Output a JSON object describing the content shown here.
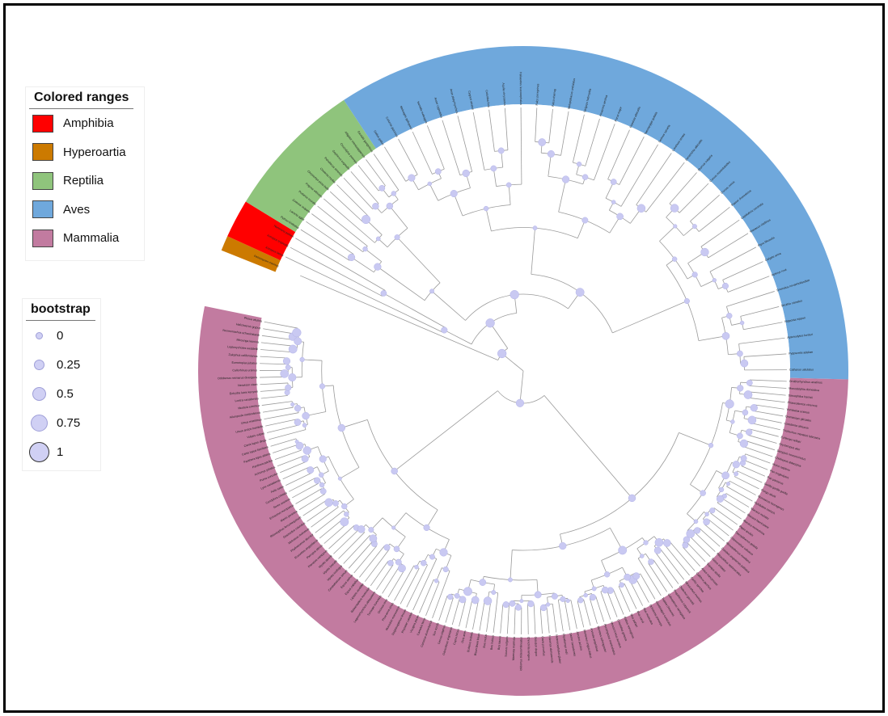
{
  "figure": {
    "type": "circular-phylogenetic-tree"
  },
  "legend_ranges": {
    "title": "Colored ranges",
    "items": [
      {
        "label": "Amphibia",
        "color": "#ff0000"
      },
      {
        "label": "Hyperoartia",
        "color": "#cc7a00"
      },
      {
        "label": "Reptilia",
        "color": "#8fc47c"
      },
      {
        "label": "Aves",
        "color": "#6fa8dc"
      },
      {
        "label": "Mammalia",
        "color": "#c27ba0"
      }
    ]
  },
  "legend_bootstrap": {
    "title": "bootstrap",
    "items": [
      {
        "label": "0",
        "value": 0
      },
      {
        "label": "0.25",
        "value": 0.25
      },
      {
        "label": "0.5",
        "value": 0.5
      },
      {
        "label": "0.75",
        "value": 0.75
      },
      {
        "label": "1",
        "value": 1
      }
    ]
  },
  "tree": {
    "node_color": "#c9c9f2",
    "branch_color": "#9a9a9a",
    "clades": [
      {
        "class": "Hyperoartia",
        "color": "#cc7a00",
        "leaves": [
          "Petromyzon marinus"
        ]
      },
      {
        "class": "Amphibia",
        "color": "#ff0000",
        "leaves": [
          "Xenopus laevis",
          "Xenopus tropicalis",
          "Nanorana parkeri"
        ]
      },
      {
        "class": "Reptilia",
        "color": "#8fc47c",
        "leaves": [
          "Python bivittatus",
          "Lacerta agilis",
          "Zootoca vivipara",
          "Podarcis muralis",
          "Pogona vitticeps",
          "Chrysemys picta bellii",
          "Chelonia mydas",
          "Pelodiscus sinensis",
          "Gopherus evgoodei",
          "Crocodylus porosus",
          "Alligator mississippiensis",
          "Gavialis gangeticus"
        ]
      },
      {
        "class": "Aves",
        "color": "#6fa8dc",
        "leaves": [
          "Gallus gallus",
          "Coturnix japonica",
          "Meleagris gallopavo",
          "Numida meleagris",
          "Anser cygnoides",
          "Anas platyrhynchos",
          "Cygnus atratus",
          "Columba livia",
          "Aquila chrysaetos",
          "Haliaeetus leucocephalus",
          "Falco peregrinus",
          "Falco cherrug",
          "Melopsittacus undulatus",
          "Strigops habroptila",
          "Amazona aestiva",
          "Parus major",
          "Ficedula albicollis",
          "Taeniopygia guttata",
          "Serinus canaria",
          "Lonchura striata",
          "Zonotrichia albicollis",
          "Sturnus vulgaris",
          "Corvus moneduloides",
          "Corvus cornix",
          "Passer domesticus",
          "Lepidothrix coronata",
          "Manacus vitellinus",
          "Pipra filicauda",
          "Calypte anna",
          "Apteryx rowi",
          "Dromaius novaehollandiae",
          "Struthio camelus",
          "Nipponia nippon",
          "Aptenodytes forsteri",
          "Pygoscelis adeliae",
          "Catharus ustulatus"
        ]
      },
      {
        "class": "Mammalia",
        "color": "#c27ba0",
        "leaves": [
          "Ornithorhynchus anatinus",
          "Monodelphis domestica",
          "Sarcophilus harrisii",
          "Phascolarctos cinereus",
          "Vombatus ursinus",
          "Dromiciops gliroides",
          "Loxodonta africana",
          "Trichechus manatus latirostris",
          "Echinops telfairi",
          "Orycteropus afer",
          "Dasypus novemcinctus",
          "Choloepus didactylus",
          "Homo sapiens",
          "Pan troglodytes",
          "Pan paniscus",
          "Gorilla gorilla gorilla",
          "Pongo abelii",
          "Nomascus leucogenys",
          "Hylobates moloch",
          "Macaca mulatta",
          "Macaca fascicularis",
          "Macaca nemestrina",
          "Papio anubis",
          "Theropithecus gelada",
          "Chlorocebus sabaeus",
          "Rhinopithecus roxellana",
          "Colobus angolensis palliatus",
          "Piliocolobus tephrosceles",
          "Cebus imitator",
          "Sapajus apella",
          "Aotus nancymaae",
          "Callithrix jacchus",
          "Carlito syrichta",
          "Microcebus murinus",
          "Otolemur garnettii",
          "Propithecus coquereli",
          "Galeopterus variegatus",
          "Tupaia chinensis",
          "Oryctolagus cuniculus",
          "Ochotona princeps",
          "Mus musculus",
          "Mus caroli",
          "Mus pahari",
          "Rattus norvegicus",
          "Cricetulus griseus",
          "Mesocricetus auratus",
          "Peromyscus maniculatus",
          "Microtus ochrogaster",
          "Arvicola amphibius",
          "Meriones unguiculatus",
          "Jaculus jaculus",
          "Castor canadensis",
          "Dipodomys ordii",
          "Heterocephalus glaber",
          "Fukomys damarensis",
          "Cavia porcellus",
          "Octodon degus",
          "Chinchilla lanigera",
          "Ictidomys tridecemlineatus",
          "Marmota marmota",
          "Sciurus vulgaris",
          "Bos taurus",
          "Bos indicus",
          "Bos mutus",
          "Bison bison bison",
          "Bubalus bubalis",
          "Ovis aries",
          "Capra hircus",
          "Odocoileus virginianus",
          "Cervus elaphus",
          "Sus scrofa",
          "Camelus dromedarius",
          "Camelus ferus",
          "Vicugna pacos",
          "Physeter catodon",
          "Delphinapterus leucas",
          "Monodon monoceros",
          "Phocoena sinus",
          "Orcinus orca",
          "Tursiops truncatus",
          "Lagenorhynchus obliquidens",
          "Balaenoptera musculus",
          "Lipotes vexillifer",
          "Equus caballus",
          "Equus asinus",
          "Ceratotherium simum",
          "Myotis lucifugus",
          "Myotis brandtii",
          "Myotis davidii",
          "Pteropus vampyrus",
          "Pteropus alecto",
          "Rousettus aegyptiacus",
          "Phyllostomus discolor",
          "Molossus molossus",
          "Desmodus rotundus",
          "Rhinolophus ferrumequinum",
          "Manis javanica",
          "Erinaceus europaeus",
          "Sorex araneus",
          "Condylura cristata",
          "Felis catus",
          "Lynx canadensis",
          "Puma concolor",
          "Acinonyx jubatus",
          "Panthera pardus",
          "Panthera tigris altaica",
          "Canis lupus familiaris",
          "Canis lupus dingo",
          "Vulpes vulpes",
          "Ursus arctos horribilis",
          "Ursus maritimus",
          "Ailuropoda melanoleuca",
          "Mustela erminea",
          "Lontra canadensis",
          "Enhydra lutris kenyoni",
          "Neovison vison",
          "Odobenus rosmarus divergens",
          "Callorhinus ursinus",
          "Eumetopias jubatus",
          "Zalophus californianus",
          "Leptonychotes weddellii",
          "Mirounga leonina",
          "Neomonachus schauinslandi",
          "Halichoerus grypus",
          "Phoca vitulina"
        ]
      }
    ]
  }
}
